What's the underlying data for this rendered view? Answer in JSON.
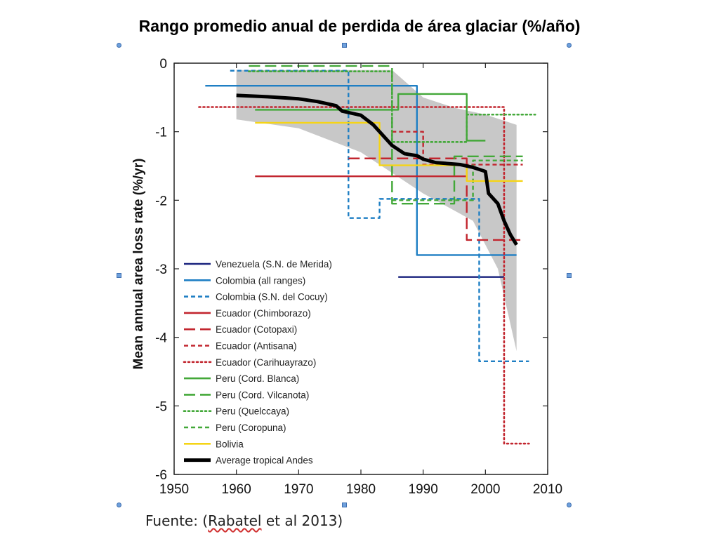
{
  "slide": {
    "title": "Rango promedio anual de perdida de área glaciar (%/año)",
    "source_prefix": "Fuente: (",
    "source_author": "Rabatel",
    "source_suffix": " et al 2013)"
  },
  "chart_data": {
    "type": "line",
    "ylabel": "Mean annual area loss rate (%/yr)",
    "xlim": [
      1950,
      2010
    ],
    "ylim": [
      -6,
      0
    ],
    "x_ticks": [
      1950,
      1960,
      1970,
      1980,
      1990,
      2000,
      2010
    ],
    "y_ticks": [
      0,
      -1,
      -2,
      -3,
      -4,
      -5,
      -6
    ],
    "legend_position": "bottom-left",
    "band": {
      "upper": [
        [
          1960,
          -0.1
        ],
        [
          1985,
          -0.1
        ],
        [
          1990,
          -0.5
        ],
        [
          1995,
          -0.65
        ],
        [
          2000,
          -0.75
        ],
        [
          2005,
          -0.9
        ]
      ],
      "lower": [
        [
          2005,
          -4.2
        ],
        [
          2002,
          -3.0
        ],
        [
          1998,
          -2.3
        ],
        [
          1990,
          -1.9
        ],
        [
          1980,
          -1.3
        ],
        [
          1970,
          -0.95
        ],
        [
          1960,
          -0.82
        ]
      ]
    },
    "series": [
      {
        "name": "Venezuela (S.N. de Merida)",
        "color": "#1a237e",
        "dash": "solid",
        "width": 2.4,
        "points": [
          [
            1986,
            -3.12
          ],
          [
            2003,
            -3.12
          ]
        ]
      },
      {
        "name": "Colombia (all ranges)",
        "color": "#1f7fc4",
        "dash": "solid",
        "width": 2.4,
        "points": [
          [
            1955,
            -0.33
          ],
          [
            1989,
            -0.33
          ],
          [
            1989,
            -2.8
          ],
          [
            2005,
            -2.8
          ]
        ]
      },
      {
        "name": "Colombia (S.N. del Cocuy)",
        "color": "#1f7fc4",
        "dash": "shortdash",
        "width": 2.4,
        "points": [
          [
            1959,
            -0.11
          ],
          [
            1978,
            -0.11
          ],
          [
            1978,
            -2.26
          ],
          [
            1983,
            -2.26
          ],
          [
            1983,
            -1.98
          ],
          [
            1999,
            -1.98
          ],
          [
            1999,
            -4.35
          ],
          [
            2007,
            -4.35
          ]
        ]
      },
      {
        "name": "Ecuador (Chimborazo)",
        "color": "#c2262f",
        "dash": "solid",
        "width": 2.4,
        "points": [
          [
            1963,
            -1.65
          ],
          [
            1997,
            -1.65
          ]
        ]
      },
      {
        "name": "Ecuador (Cotopaxi)",
        "color": "#c2262f",
        "dash": "longdash",
        "width": 2.4,
        "points": [
          [
            1978,
            -1.39
          ],
          [
            1997,
            -1.39
          ],
          [
            1997,
            -2.58
          ],
          [
            2006,
            -2.58
          ]
        ]
      },
      {
        "name": "Ecuador (Antisana)",
        "color": "#c2262f",
        "dash": "shortdash",
        "width": 2.4,
        "points": [
          [
            1985,
            -1.0
          ],
          [
            1990,
            -1.0
          ],
          [
            1990,
            -1.48
          ],
          [
            2006,
            -1.48
          ]
        ]
      },
      {
        "name": "Ecuador (Carihuayrazo)",
        "color": "#c2262f",
        "dash": "dotted",
        "width": 2.6,
        "points": [
          [
            1954,
            -0.64
          ],
          [
            2003,
            -0.64
          ],
          [
            2003,
            -5.55
          ],
          [
            2007,
            -5.55
          ]
        ]
      },
      {
        "name": "Peru (Cord. Blanca)",
        "color": "#43a839",
        "dash": "solid",
        "width": 2.4,
        "points": [
          [
            1963,
            -0.68
          ],
          [
            1986,
            -0.68
          ],
          [
            1986,
            -0.45
          ],
          [
            1997,
            -0.45
          ],
          [
            1997,
            -1.13
          ],
          [
            2000,
            -1.13
          ]
        ]
      },
      {
        "name": "Peru (Cord. Vilcanota)",
        "color": "#43a839",
        "dash": "longdash",
        "width": 2.4,
        "points": [
          [
            1962,
            -0.04
          ],
          [
            1985,
            -0.04
          ],
          [
            1985,
            -2.05
          ],
          [
            1995,
            -2.05
          ],
          [
            1995,
            -1.36
          ],
          [
            2006,
            -1.36
          ]
        ]
      },
      {
        "name": "Peru (Quelccaya)",
        "color": "#43a839",
        "dash": "dotted",
        "width": 2.6,
        "points": [
          [
            1962,
            -0.12
          ],
          [
            1985,
            -0.12
          ],
          [
            1985,
            -1.15
          ],
          [
            1997,
            -1.15
          ],
          [
            1997,
            -0.75
          ],
          [
            2008,
            -0.75
          ]
        ]
      },
      {
        "name": "Peru (Coropuna)",
        "color": "#43a839",
        "dash": "shortdash",
        "width": 2.4,
        "points": [
          [
            1985,
            -2.0
          ],
          [
            1998,
            -2.0
          ],
          [
            1998,
            -1.42
          ],
          [
            2006,
            -1.42
          ]
        ]
      },
      {
        "name": "Bolivia",
        "color": "#f5d416",
        "dash": "solid",
        "width": 2.4,
        "points": [
          [
            1963,
            -0.87
          ],
          [
            1983,
            -0.87
          ],
          [
            1983,
            -1.49
          ],
          [
            1997,
            -1.49
          ],
          [
            1997,
            -1.72
          ],
          [
            2006,
            -1.72
          ]
        ]
      },
      {
        "name": "Average tropical Andes",
        "color": "#000000",
        "dash": "solid",
        "width": 5,
        "points": [
          [
            1960,
            -0.47
          ],
          [
            1965,
            -0.49
          ],
          [
            1970,
            -0.52
          ],
          [
            1973,
            -0.56
          ],
          [
            1976,
            -0.62
          ],
          [
            1977,
            -0.7
          ],
          [
            1980,
            -0.76
          ],
          [
            1982,
            -0.9
          ],
          [
            1983,
            -1.0
          ],
          [
            1984,
            -1.1
          ],
          [
            1985,
            -1.2
          ],
          [
            1986,
            -1.26
          ],
          [
            1987,
            -1.32
          ],
          [
            1989,
            -1.35
          ],
          [
            1990,
            -1.4
          ],
          [
            1992,
            -1.45
          ],
          [
            1996,
            -1.48
          ],
          [
            1998,
            -1.52
          ],
          [
            2000,
            -1.58
          ],
          [
            2000.5,
            -1.9
          ],
          [
            2002,
            -2.05
          ],
          [
            2003,
            -2.3
          ],
          [
            2004,
            -2.5
          ],
          [
            2005,
            -2.65
          ]
        ]
      }
    ]
  }
}
